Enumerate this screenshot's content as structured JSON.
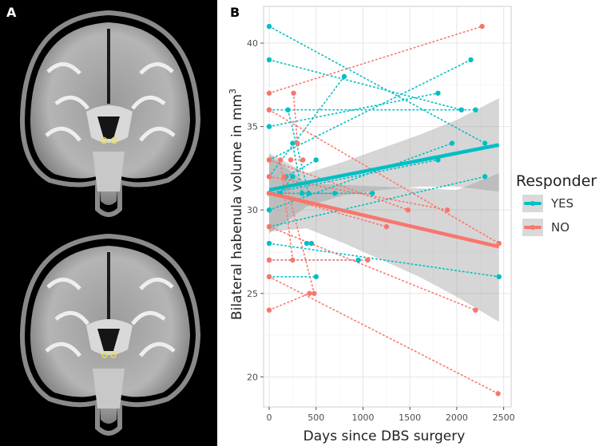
{
  "panel_labels": {
    "a": "A",
    "b": "B"
  },
  "colors": {
    "yes": "#00BFC4",
    "no": "#F8766D",
    "ribbon": "#999999",
    "grid": "#e5e5e5",
    "panel_bg": "#ffffff"
  },
  "chart_data": {
    "type": "scatter",
    "title": "",
    "xlabel": "Days since DBS surgery",
    "ylabel_main": "Bilateral habenula volume in mm",
    "ylabel_sup": "3",
    "xlim": [
      -60,
      2580
    ],
    "ylim": [
      18.2,
      42.2
    ],
    "xticks": [
      0,
      500,
      1000,
      1500,
      2000,
      2500
    ],
    "yticks": [
      20,
      25,
      30,
      35,
      40
    ],
    "legend": {
      "title": "Responder",
      "position": "right",
      "entries": [
        "YES",
        "NO"
      ]
    },
    "series": [
      {
        "name": "YES",
        "subjects": [
          [
            [
              0,
              41
            ],
            [
              2300,
              34
            ]
          ],
          [
            [
              0,
              39
            ],
            [
              2050,
              36
            ]
          ],
          [
            [
              0,
              36
            ],
            [
              2200,
              36
            ]
          ],
          [
            [
              0,
              35
            ],
            [
              1800,
              37
            ]
          ],
          [
            [
              0,
              33
            ],
            [
              2150,
              39
            ]
          ],
          [
            [
              0,
              32
            ],
            [
              800,
              38
            ]
          ],
          [
            [
              0,
              31
            ],
            [
              1800,
              33
            ]
          ],
          [
            [
              0,
              30
            ],
            [
              1950,
              34
            ]
          ],
          [
            [
              0,
              29
            ],
            [
              2300,
              32
            ]
          ],
          [
            [
              0,
              31
            ],
            [
              1100,
              31
            ]
          ],
          [
            [
              0,
              28
            ],
            [
              2450,
              26
            ]
          ],
          [
            [
              0,
              27
            ],
            [
              950,
              27
            ]
          ],
          [
            [
              0,
              26
            ],
            [
              500,
              26
            ]
          ],
          [
            [
              200,
              36
            ],
            [
              420,
              31
            ]
          ],
          [
            [
              180,
              32
            ],
            [
              500,
              33
            ]
          ],
          [
            [
              350,
              31
            ],
            [
              700,
              31
            ]
          ],
          [
            [
              400,
              28
            ],
            [
              450,
              28
            ]
          ],
          [
            [
              250,
              34
            ],
            [
              350,
              31
            ]
          ],
          [
            [
              120,
              31
            ],
            [
              250,
              32
            ]
          ]
        ],
        "fit": {
          "x": [
            0,
            2450
          ],
          "y": [
            31.2,
            33.9
          ]
        },
        "band_upper": [
          [
            0,
            33.4
          ],
          [
            400,
            32.2
          ],
          [
            800,
            32.9
          ],
          [
            1200,
            33.7
          ],
          [
            1600,
            34.5
          ],
          [
            2000,
            35.4
          ],
          [
            2450,
            36.7
          ]
        ],
        "band_lower": [
          [
            0,
            28.6
          ],
          [
            400,
            30.2
          ],
          [
            800,
            30.9
          ],
          [
            1200,
            31.2
          ],
          [
            1600,
            31.4
          ],
          [
            2000,
            31.4
          ],
          [
            2450,
            31.1
          ]
        ]
      },
      {
        "name": "NO",
        "subjects": [
          [
            [
              0,
              37
            ],
            [
              2270,
              41
            ]
          ],
          [
            [
              0,
              36
            ],
            [
              2450,
              28
            ]
          ],
          [
            [
              0,
              33
            ],
            [
              1480,
              30
            ]
          ],
          [
            [
              0,
              32
            ],
            [
              1900,
              30
            ]
          ],
          [
            [
              0,
              31
            ],
            [
              1250,
              29
            ]
          ],
          [
            [
              0,
              29
            ],
            [
              2200,
              24
            ]
          ],
          [
            [
              0,
              27
            ],
            [
              1050,
              27
            ]
          ],
          [
            [
              0,
              26
            ],
            [
              2440,
              19
            ]
          ],
          [
            [
              0,
              24
            ],
            [
              430,
              25
            ]
          ],
          [
            [
              230,
              33
            ],
            [
              360,
              33
            ]
          ],
          [
            [
              260,
              37
            ],
            [
              300,
              34
            ]
          ],
          [
            [
              160,
              32
            ],
            [
              480,
              25
            ]
          ],
          [
            [
              120,
              33
            ],
            [
              250,
              27
            ]
          ]
        ],
        "fit": {
          "x": [
            0,
            2450
          ],
          "y": [
            31.0,
            27.8
          ]
        },
        "band_upper": [
          [
            0,
            33.3
          ],
          [
            400,
            31.6
          ],
          [
            800,
            31.5
          ],
          [
            1200,
            31.4
          ],
          [
            1600,
            31.3
          ],
          [
            2000,
            31.2
          ],
          [
            2450,
            32.2
          ]
        ],
        "band_lower": [
          [
            0,
            28.7
          ],
          [
            400,
            28.9
          ],
          [
            800,
            28.0
          ],
          [
            1200,
            27.0
          ],
          [
            1600,
            26.0
          ],
          [
            2000,
            24.8
          ],
          [
            2450,
            23.3
          ]
        ]
      }
    ]
  }
}
